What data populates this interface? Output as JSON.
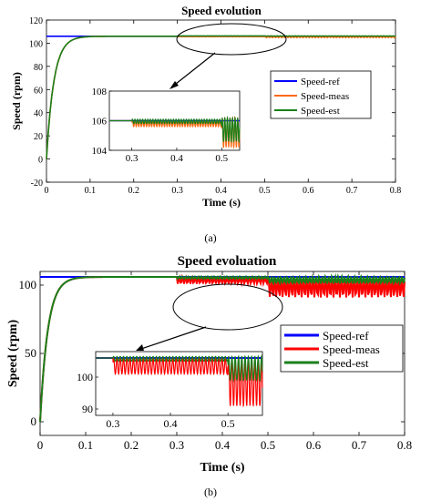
{
  "chart_data": [
    {
      "type": "line",
      "title": "Speed evolution",
      "xlabel": "Time (s)",
      "ylabel": "Speed (rpm)",
      "xlim": [
        0,
        0.8
      ],
      "ylim": [
        -20,
        120
      ],
      "xticks": [
        "0",
        "0.1",
        "0.2",
        "0.3",
        "0.4",
        "0.5",
        "0.6",
        "0.7",
        "0.8"
      ],
      "yticks": [
        "-20",
        "0",
        "20",
        "40",
        "60",
        "80",
        "100",
        "120"
      ],
      "grid": false,
      "legend": "right",
      "colors": {
        "ref": "#0000ff",
        "meas": "#ff6a13",
        "est": "#1a7f1a"
      },
      "series": [
        {
          "name": "Speed-ref",
          "description": "constant reference",
          "x": [
            0,
            0.8
          ],
          "y": [
            106,
            106
          ]
        },
        {
          "name": "Speed-meas",
          "x": [
            0,
            0.02,
            0.04,
            0.06,
            0.08,
            0.3,
            0.5,
            0.8
          ],
          "y": [
            0,
            72,
            98,
            104.5,
            106,
            106,
            105,
            105
          ]
        },
        {
          "name": "Speed-est",
          "x": [
            0,
            0.02,
            0.04,
            0.06,
            0.08,
            0.3,
            0.5,
            0.8
          ],
          "y": [
            0,
            72,
            98,
            104.5,
            106,
            106,
            105.5,
            105.5
          ]
        }
      ],
      "inset": {
        "xlim": [
          0.25,
          0.54
        ],
        "ylim": [
          104,
          108
        ],
        "xticks": [
          "0.3",
          "0.4",
          "0.5"
        ],
        "yticks": [
          "104",
          "106",
          "108"
        ],
        "series": [
          {
            "name": "Speed-ref",
            "x": [
              0.25,
              0.54
            ],
            "y": [
              106,
              106
            ]
          },
          {
            "name": "Speed-meas",
            "x": [
              0.25,
              0.3,
              0.5,
              0.54
            ],
            "y": [
              106,
              105.8,
              105.2,
              105.2
            ],
            "ripple_after": [
              0.3,
              0.5
            ],
            "ripple_range": [
              [
                105.6,
                106.0
              ],
              [
                104.2,
                106.2
              ]
            ]
          },
          {
            "name": "Speed-est",
            "x": [
              0.25,
              0.3,
              0.5,
              0.54
            ],
            "y": [
              106,
              106,
              105.6,
              105.6
            ],
            "ripple_after": [
              0.3,
              0.5
            ],
            "ripple_range": [
              [
                105.8,
                106.1
              ],
              [
                104.6,
                106.2
              ]
            ]
          }
        ]
      },
      "caption": "(a)"
    },
    {
      "type": "line",
      "title": "Speed evoluation",
      "xlabel": "Time (s)",
      "ylabel": "Speed (rpm)",
      "xlim": [
        0,
        0.8
      ],
      "ylim": [
        -10,
        110
      ],
      "xticks": [
        "0",
        "0.1",
        "0.2",
        "0.3",
        "0.4",
        "0.5",
        "0.6",
        "0.7",
        "0.8"
      ],
      "yticks": [
        "0",
        "50",
        "100"
      ],
      "grid": false,
      "legend": "right",
      "colors": {
        "ref": "#0000ff",
        "meas": "#ff0000",
        "est": "#1a7f1a"
      },
      "series": [
        {
          "name": "Speed-ref",
          "x": [
            0,
            0.8
          ],
          "y": [
            106,
            106
          ]
        },
        {
          "name": "Speed-meas",
          "x": [
            0,
            0.02,
            0.04,
            0.06,
            0.08,
            0.3,
            0.5,
            0.8
          ],
          "y": [
            0,
            72,
            98,
            104.5,
            106,
            104,
            101,
            101
          ]
        },
        {
          "name": "Speed-est",
          "x": [
            0,
            0.02,
            0.04,
            0.06,
            0.08,
            0.3,
            0.5,
            0.8
          ],
          "y": [
            0,
            72,
            98,
            104.5,
            106,
            105.5,
            103,
            103
          ]
        }
      ],
      "inset": {
        "xlim": [
          0.27,
          0.56
        ],
        "ylim": [
          88,
          108
        ],
        "xticks": [
          "0.3",
          "0.4",
          "0.5"
        ],
        "yticks": [
          "90",
          "100"
        ],
        "series": [
          {
            "name": "Speed-ref",
            "x": [
              0.27,
              0.56
            ],
            "y": [
              106,
              106
            ]
          },
          {
            "name": "Speed-meas",
            "ripple_after": [
              0.3,
              0.5
            ],
            "ripple_range": [
              [
                101,
                106
              ],
              [
                91,
                106
              ]
            ]
          },
          {
            "name": "Speed-est",
            "ripple_after": [
              0.3,
              0.5
            ],
            "ripple_range": [
              [
                105,
                106.5
              ],
              [
                99,
                106.5
              ]
            ]
          }
        ]
      },
      "caption": "(b)"
    }
  ]
}
